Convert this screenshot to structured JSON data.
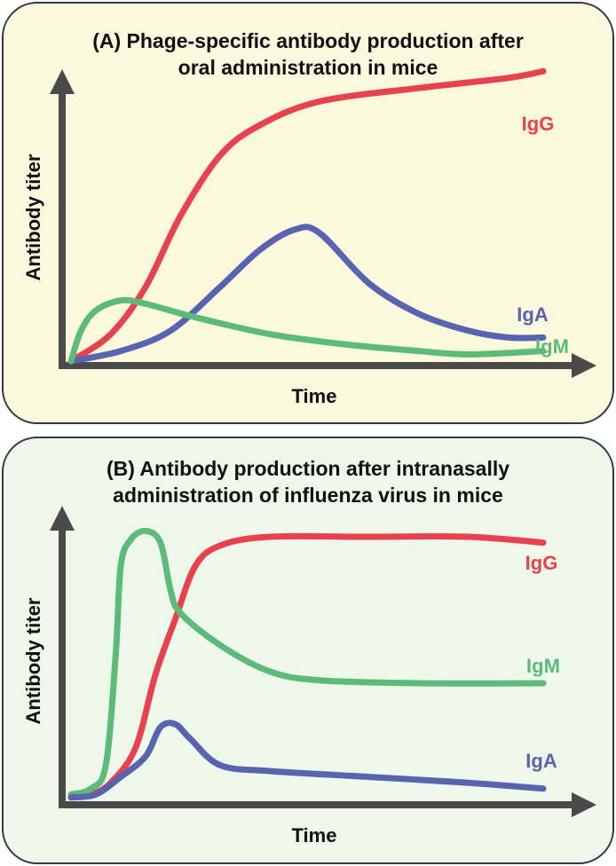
{
  "chart_data": [
    {
      "type": "line",
      "title": "(A)  Phage-specific antibody production after oral administration in mice",
      "title_lines": [
        "(A)  Phage-specific antibody production after",
        "oral administration in mice"
      ],
      "xlabel": "Time",
      "ylabel": "Antibody titer",
      "x_ticks": false,
      "y_ticks": false,
      "grid": false,
      "legend": "inline labels at line ends",
      "xlim": [
        0,
        100
      ],
      "ylim": [
        0,
        100
      ],
      "series": [
        {
          "name": "IgG",
          "color": "#e8424f",
          "points": [
            [
              0,
              0
            ],
            [
              8,
              8
            ],
            [
              15,
              22
            ],
            [
              22,
              43
            ],
            [
              30,
              61
            ],
            [
              38,
              70
            ],
            [
              50,
              77
            ],
            [
              70,
              81
            ],
            [
              88,
              84
            ],
            [
              95,
              86
            ]
          ]
        },
        {
          "name": "IgA",
          "color": "#5864b0",
          "points": [
            [
              0,
              0
            ],
            [
              10,
              3
            ],
            [
              20,
              9
            ],
            [
              30,
              22
            ],
            [
              38,
              33
            ],
            [
              45,
              39
            ],
            [
              50,
              38
            ],
            [
              60,
              23
            ],
            [
              70,
              14
            ],
            [
              80,
              9
            ],
            [
              88,
              7
            ],
            [
              95,
              7
            ]
          ]
        },
        {
          "name": "IgM",
          "color": "#5dbb7a",
          "points": [
            [
              0,
              0
            ],
            [
              2,
              9
            ],
            [
              5,
              15
            ],
            [
              10,
              18
            ],
            [
              15,
              17
            ],
            [
              25,
              13
            ],
            [
              40,
              8
            ],
            [
              55,
              5
            ],
            [
              70,
              3
            ],
            [
              80,
              2
            ],
            [
              95,
              3
            ]
          ]
        }
      ]
    },
    {
      "type": "line",
      "title": "(B) Antibody production after intranasally administration of influenza virus in mice",
      "title_lines": [
        "(B) Antibody production after intranasally",
        "administration of influenza virus in mice"
      ],
      "xlabel": "Time",
      "ylabel": "Antibody titer",
      "x_ticks": false,
      "y_ticks": false,
      "grid": false,
      "legend": "inline labels at line ends",
      "xlim": [
        0,
        100
      ],
      "ylim": [
        0,
        100
      ],
      "series": [
        {
          "name": "IgG",
          "color": "#e8424f",
          "points": [
            [
              0,
              1
            ],
            [
              4,
              2
            ],
            [
              8,
              6
            ],
            [
              13,
              18
            ],
            [
              17,
              43
            ],
            [
              21,
              62
            ],
            [
              25,
              80
            ],
            [
              30,
              87
            ],
            [
              40,
              90
            ],
            [
              60,
              90
            ],
            [
              80,
              90
            ],
            [
              95,
              88
            ]
          ]
        },
        {
          "name": "IgM",
          "color": "#5dbb7a",
          "points": [
            [
              0,
              2
            ],
            [
              4,
              4
            ],
            [
              7,
              12
            ],
            [
              9,
              50
            ],
            [
              10,
              80
            ],
            [
              12,
              89
            ],
            [
              15,
              92
            ],
            [
              18,
              88
            ],
            [
              20,
              72
            ],
            [
              22,
              64
            ],
            [
              30,
              53
            ],
            [
              40,
              44
            ],
            [
              50,
              41
            ],
            [
              70,
              40
            ],
            [
              95,
              40
            ]
          ]
        },
        {
          "name": "IgA",
          "color": "#5864b0",
          "points": [
            [
              0,
              1
            ],
            [
              5,
              2
            ],
            [
              10,
              8
            ],
            [
              15,
              15
            ],
            [
              18,
              25
            ],
            [
              21,
              26
            ],
            [
              24,
              21
            ],
            [
              30,
              12
            ],
            [
              40,
              10
            ],
            [
              60,
              8
            ],
            [
              80,
              6
            ],
            [
              95,
              4
            ]
          ]
        }
      ]
    }
  ]
}
